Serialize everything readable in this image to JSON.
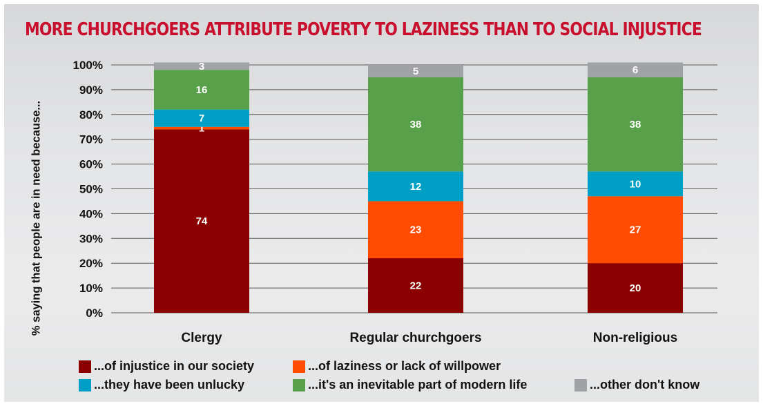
{
  "title": "MORE CHURCHGOERS ATTRIBUTE POVERTY TO LAZINESS THAN TO SOCIAL INJUSTICE",
  "colors": {
    "title": "#c8102e",
    "injustice": "#8b0000",
    "laziness": "#ff4c00",
    "unlucky": "#00a0c6",
    "inevitable": "#58a04a",
    "dont_know": "#a0a2a5"
  },
  "chart_data": {
    "type": "bar",
    "stacked": true,
    "title": "MORE CHURCHGOERS ATTRIBUTE POVERTY TO LAZINESS THAN TO SOCIAL INJUSTICE",
    "xlabel": "",
    "ylabel": "% saying that people are in need because...",
    "ylim": [
      0,
      100
    ],
    "yticks": [
      "0%",
      "10%",
      "20%",
      "30%",
      "40%",
      "50%",
      "60%",
      "70%",
      "80%",
      "90%",
      "100%"
    ],
    "grid": true,
    "legend_position": "bottom",
    "categories": [
      "Clergy",
      "Regular churchgoers",
      "Non-religious"
    ],
    "series": [
      {
        "name": "...of injustice in our society",
        "color": "#8b0000",
        "values": [
          74,
          22,
          20
        ]
      },
      {
        "name": "...of laziness or lack of willpower",
        "color": "#ff4c00",
        "values": [
          1,
          23,
          27
        ]
      },
      {
        "name": "...they have been unlucky",
        "color": "#00a0c6",
        "values": [
          7,
          12,
          10
        ]
      },
      {
        "name": "...it's an inevitable part of modern life",
        "color": "#58a04a",
        "values": [
          16,
          38,
          38
        ]
      },
      {
        "name": "...other don't know",
        "color": "#a0a2a5",
        "values": [
          3,
          5,
          6
        ]
      }
    ]
  }
}
